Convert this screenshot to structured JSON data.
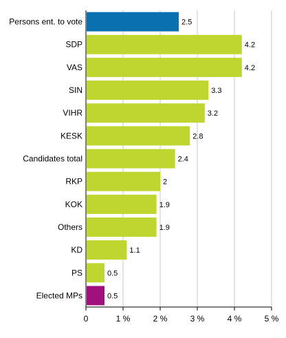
{
  "chart_data": {
    "type": "bar",
    "orientation": "horizontal",
    "categories": [
      "Persons ent. to vote",
      "SDP",
      "VAS",
      "SIN",
      "VIHR",
      "KESK",
      "Candidates total",
      "RKP",
      "KOK",
      "Others",
      "KD",
      "PS",
      "Elected MPs"
    ],
    "values": [
      2.5,
      4.2,
      4.2,
      3.3,
      3.2,
      2.8,
      2.4,
      2.0,
      1.9,
      1.9,
      1.1,
      0.5,
      0.5
    ],
    "value_labels": [
      "2.5",
      "4.2",
      "4.2",
      "3.3",
      "3.2",
      "2.8",
      "2.4",
      "2",
      "1.9",
      "1.9",
      "1.1",
      "0.5",
      "0.5"
    ],
    "bar_colors": [
      "#0a70b0",
      "#bed62f",
      "#bed62f",
      "#bed62f",
      "#bed62f",
      "#bed62f",
      "#bed62f",
      "#bed62f",
      "#bed62f",
      "#bed62f",
      "#bed62f",
      "#bed62f",
      "#a0117e"
    ],
    "xlim": [
      0,
      5
    ],
    "xticks": [
      0,
      1,
      2,
      3,
      4,
      5
    ],
    "xtick_labels": [
      "0",
      "1 %",
      "2 %",
      "3 %",
      "4 %",
      "5 %"
    ],
    "grid": "vertical",
    "grid_color": "#c8c8c8",
    "title": "",
    "xlabel": "",
    "ylabel": ""
  }
}
